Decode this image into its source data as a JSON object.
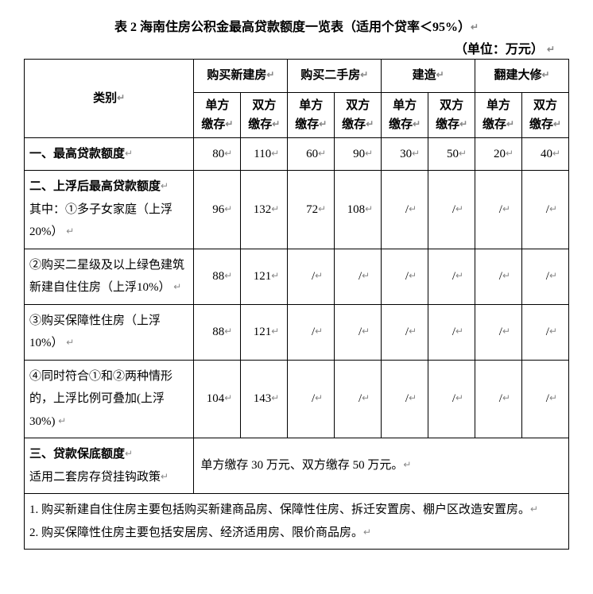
{
  "title": "表 2 海南住房公积金最高贷款额度一览表（适用个贷率＜95%）",
  "unit": "（单位：万元）",
  "marker": "↵",
  "headers": {
    "category": "类别",
    "groups": [
      "购买新建房",
      "购买二手房",
      "建造",
      "翻建大修"
    ],
    "sub": {
      "single": "单方缴存",
      "double": "双方缴存"
    }
  },
  "rows": [
    {
      "label": "一、最高贷款额度",
      "labelMarker": true,
      "cells": [
        "80",
        "110",
        "60",
        "90",
        "30",
        "50",
        "20",
        "40"
      ],
      "blankAfterLabel": false
    },
    {
      "label": "二、上浮后最高贷款额度\n其中：①多子女家庭（上浮 20%）",
      "labelParts": [
        "二、上浮后最高贷款额度",
        "其中：①多子女家庭（上浮 20%）"
      ],
      "cells": [
        "96",
        "132",
        "72",
        "108",
        "/",
        "/",
        "/",
        "/"
      ]
    },
    {
      "labelParts": [
        "②购买二星级及以上绿色建筑新建自住住房（上浮10%）"
      ],
      "cells": [
        "88",
        "121",
        "/",
        "/",
        "/",
        "/",
        "/",
        "/"
      ]
    },
    {
      "labelParts": [
        "③购买保障性住房（上浮10%）"
      ],
      "cells": [
        "88",
        "121",
        "/",
        "/",
        "/",
        "/",
        "/",
        "/"
      ]
    },
    {
      "labelParts": [
        "④同时符合①和②两种情形的，上浮比例可叠加(上浮 30%)"
      ],
      "cells": [
        "104",
        "143",
        "/",
        "/",
        "/",
        "/",
        "/",
        "/"
      ]
    }
  ],
  "bottomRow": {
    "labelParts": [
      "三、贷款保底额度",
      "适用二套房存贷挂钩政策"
    ],
    "note": "单方缴存 30 万元、双方缴存 50 万元。"
  },
  "footnotes": [
    "1. 购买新建自住住房主要包括购买新建商品房、保障性住房、拆迁安置房、棚户区改造安置房。",
    "2. 购买保障性住房主要包括安居房、经济适用房、限价商品房。"
  ]
}
